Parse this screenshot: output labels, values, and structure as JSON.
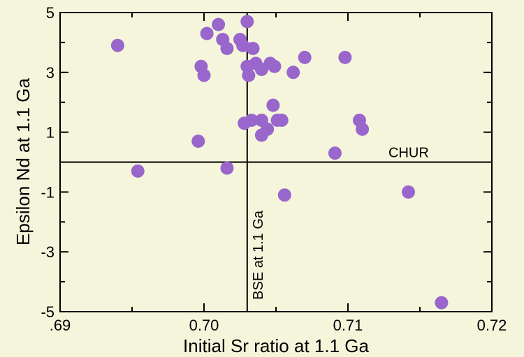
{
  "chart_data": {
    "type": "scatter",
    "xlabel": "Initial Sr ratio at 1.1 Ga",
    "ylabel": "Epsilon Nd at 1.1 Ga",
    "xlim": [
      0.69,
      0.72
    ],
    "ylim": [
      -5,
      5
    ],
    "x_ticks": [
      0.69,
      0.7,
      0.71,
      0.72
    ],
    "x_tick_labels": [
      ".69",
      "0.70",
      "0.71",
      "0.72"
    ],
    "y_ticks": [
      -5,
      -3,
      -1,
      1,
      3,
      5
    ],
    "y_tick_labels": [
      "-5",
      "-3",
      "-1",
      "1",
      "3",
      "5"
    ],
    "y_minor_ticks": [
      -4,
      -2,
      0,
      2,
      4
    ],
    "x_minor_ticks": [
      0.695,
      0.705,
      0.715
    ],
    "grid": false,
    "marker_color": "#9966cc",
    "reference_lines": [
      {
        "orientation": "horizontal",
        "value": 0,
        "label": "CHUR"
      },
      {
        "orientation": "vertical",
        "value": 0.703,
        "label": "BSE at 1.1 Ga"
      }
    ],
    "points": [
      {
        "x": 0.694,
        "y": 3.9
      },
      {
        "x": 0.6954,
        "y": -0.3
      },
      {
        "x": 0.6996,
        "y": 0.7
      },
      {
        "x": 0.6998,
        "y": 3.2
      },
      {
        "x": 0.7,
        "y": 2.9
      },
      {
        "x": 0.7002,
        "y": 4.3
      },
      {
        "x": 0.701,
        "y": 4.6
      },
      {
        "x": 0.7013,
        "y": 4.1
      },
      {
        "x": 0.7016,
        "y": 3.8
      },
      {
        "x": 0.7016,
        "y": -0.2
      },
      {
        "x": 0.7025,
        "y": 4.1
      },
      {
        "x": 0.7027,
        "y": 3.9
      },
      {
        "x": 0.7028,
        "y": 1.3
      },
      {
        "x": 0.703,
        "y": 4.7
      },
      {
        "x": 0.703,
        "y": 3.2
      },
      {
        "x": 0.7031,
        "y": 2.9
      },
      {
        "x": 0.7033,
        "y": 1.4
      },
      {
        "x": 0.7034,
        "y": 3.8
      },
      {
        "x": 0.7036,
        "y": 3.3
      },
      {
        "x": 0.704,
        "y": 3.1
      },
      {
        "x": 0.704,
        "y": 1.4
      },
      {
        "x": 0.704,
        "y": 0.9
      },
      {
        "x": 0.7044,
        "y": 1.1
      },
      {
        "x": 0.7046,
        "y": 3.3
      },
      {
        "x": 0.7048,
        "y": 1.9
      },
      {
        "x": 0.7049,
        "y": 3.2
      },
      {
        "x": 0.7051,
        "y": 1.4
      },
      {
        "x": 0.7054,
        "y": 1.4
      },
      {
        "x": 0.7056,
        "y": -1.1
      },
      {
        "x": 0.7062,
        "y": 3.0
      },
      {
        "x": 0.707,
        "y": 3.5
      },
      {
        "x": 0.7091,
        "y": 0.3
      },
      {
        "x": 0.7098,
        "y": 3.5
      },
      {
        "x": 0.7108,
        "y": 1.4
      },
      {
        "x": 0.711,
        "y": 1.1
      },
      {
        "x": 0.7142,
        "y": -1.0
      },
      {
        "x": 0.7165,
        "y": -4.7
      }
    ]
  }
}
